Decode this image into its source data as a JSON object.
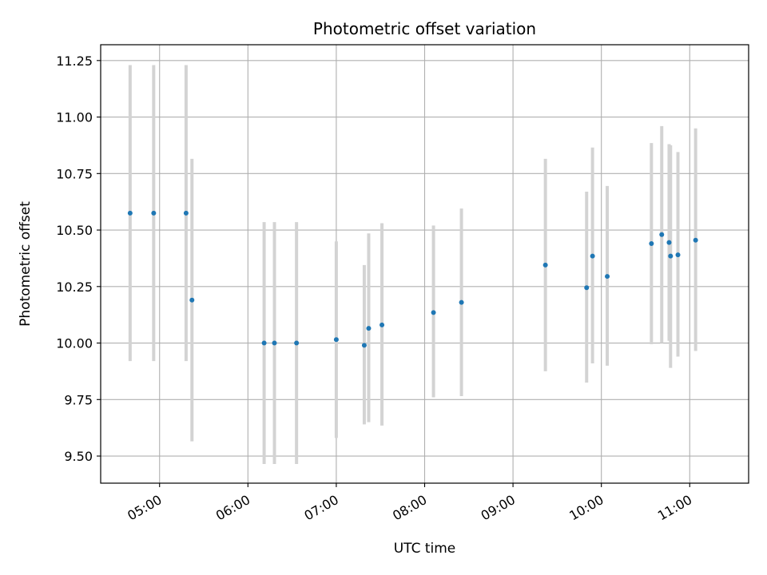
{
  "chart_data": {
    "type": "scatter",
    "title": "Photometric offset variation",
    "xlabel": "UTC time",
    "ylabel": "Photometric offset",
    "x_is_time": true,
    "xlim": [
      "04:20",
      "11:40"
    ],
    "ylim": [
      9.38,
      11.32
    ],
    "y_ticks": [
      9.5,
      9.75,
      10.0,
      10.25,
      10.5,
      10.75,
      11.0,
      11.25
    ],
    "y_tick_labels": [
      "9.50",
      "9.75",
      "10.00",
      "10.25",
      "10.50",
      "10.75",
      "11.00",
      "11.25"
    ],
    "x_ticks": [
      "05:00",
      "06:00",
      "07:00",
      "08:00",
      "09:00",
      "10:00",
      "11:00"
    ],
    "x_tick_labels": [
      "05:00",
      "06:00",
      "07:00",
      "08:00",
      "09:00",
      "10:00",
      "11:00"
    ],
    "grid": true,
    "colors": {
      "points": "#1f77b4",
      "errorbars": "#d3d3d3",
      "grid": "#b0b0b0"
    },
    "points": [
      {
        "x": "04:40",
        "y": 10.575,
        "ylow": 9.92,
        "yhigh": 11.23
      },
      {
        "x": "04:56",
        "y": 10.575,
        "ylow": 9.92,
        "yhigh": 11.23
      },
      {
        "x": "05:18",
        "y": 10.575,
        "ylow": 9.92,
        "yhigh": 11.23
      },
      {
        "x": "05:22",
        "y": 10.19,
        "ylow": 9.565,
        "yhigh": 10.815
      },
      {
        "x": "06:11",
        "y": 10.0,
        "ylow": 9.465,
        "yhigh": 10.535
      },
      {
        "x": "06:18",
        "y": 10.0,
        "ylow": 9.465,
        "yhigh": 10.535
      },
      {
        "x": "06:33",
        "y": 10.0,
        "ylow": 9.465,
        "yhigh": 10.535
      },
      {
        "x": "07:00",
        "y": 10.015,
        "ylow": 9.58,
        "yhigh": 10.45
      },
      {
        "x": "07:19",
        "y": 9.99,
        "ylow": 9.64,
        "yhigh": 10.345
      },
      {
        "x": "07:22",
        "y": 10.065,
        "ylow": 9.65,
        "yhigh": 10.485
      },
      {
        "x": "07:31",
        "y": 10.08,
        "ylow": 9.635,
        "yhigh": 10.53
      },
      {
        "x": "08:06",
        "y": 10.135,
        "ylow": 9.76,
        "yhigh": 10.52
      },
      {
        "x": "08:25",
        "y": 10.18,
        "ylow": 9.765,
        "yhigh": 10.595
      },
      {
        "x": "09:22",
        "y": 10.345,
        "ylow": 9.875,
        "yhigh": 10.815
      },
      {
        "x": "09:50",
        "y": 10.245,
        "ylow": 9.825,
        "yhigh": 10.67
      },
      {
        "x": "09:54",
        "y": 10.385,
        "ylow": 9.91,
        "yhigh": 10.865
      },
      {
        "x": "10:04",
        "y": 10.295,
        "ylow": 9.9,
        "yhigh": 10.695
      },
      {
        "x": "10:34",
        "y": 10.44,
        "ylow": 9.995,
        "yhigh": 10.885
      },
      {
        "x": "10:41",
        "y": 10.48,
        "ylow": 10.0,
        "yhigh": 10.96
      },
      {
        "x": "10:46",
        "y": 10.445,
        "ylow": 10.01,
        "yhigh": 10.88
      },
      {
        "x": "10:47",
        "y": 10.385,
        "ylow": 9.89,
        "yhigh": 10.875
      },
      {
        "x": "10:52",
        "y": 10.39,
        "ylow": 9.94,
        "yhigh": 10.845
      },
      {
        "x": "11:04",
        "y": 10.455,
        "ylow": 9.965,
        "yhigh": 10.95
      }
    ]
  }
}
